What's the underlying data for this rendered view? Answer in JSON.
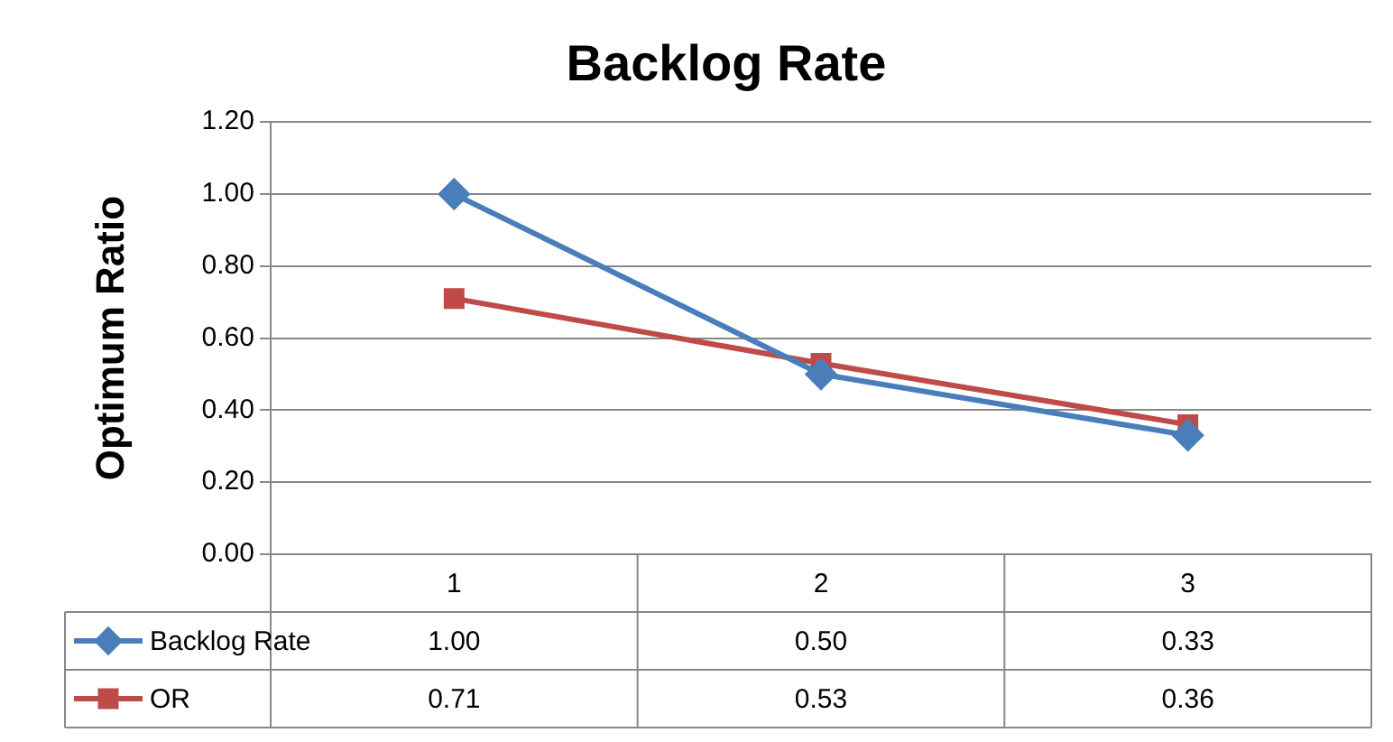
{
  "chart_data": {
    "type": "line",
    "title": "Backlog Rate",
    "ylabel": "Optimum Ratio",
    "categories": [
      "1",
      "2",
      "3"
    ],
    "series": [
      {
        "name": "Backlog Rate",
        "color": "#4a7ebb",
        "marker": "diamond",
        "values": [
          1.0,
          0.5,
          0.33
        ],
        "value_labels": [
          "1.00",
          "0.50",
          "0.33"
        ]
      },
      {
        "name": "OR",
        "color": "#be4b48",
        "marker": "square",
        "values": [
          0.71,
          0.53,
          0.36
        ],
        "value_labels": [
          "0.71",
          "0.53",
          "0.36"
        ]
      }
    ],
    "ylim": [
      0,
      1.2
    ],
    "yticks": [
      {
        "value": 0,
        "label": "0.00"
      },
      {
        "value": 0.2,
        "label": "0.20"
      },
      {
        "value": 0.4,
        "label": "0.40"
      },
      {
        "value": 0.6,
        "label": "0.60"
      },
      {
        "value": 0.8,
        "label": "0.80"
      },
      {
        "value": 1.0,
        "label": "1.00"
      },
      {
        "value": 1.2,
        "label": "1.20"
      }
    ],
    "grid": "y",
    "legend": "bottom",
    "line_style": "solid"
  }
}
